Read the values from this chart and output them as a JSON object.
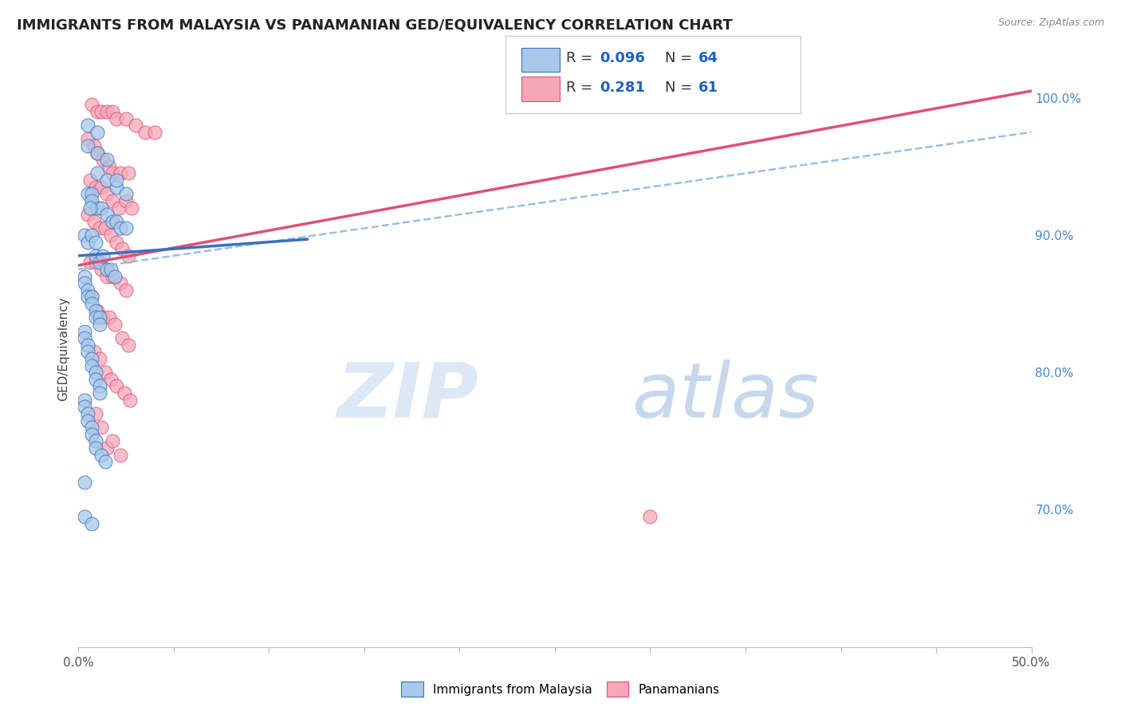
{
  "title": "IMMIGRANTS FROM MALAYSIA VS PANAMANIAN GED/EQUIVALENCY CORRELATION CHART",
  "source": "Source: ZipAtlas.com",
  "ylabel": "GED/Equivalency",
  "ytick_labels": [
    "100.0%",
    "90.0%",
    "80.0%",
    "70.0%"
  ],
  "ytick_values": [
    1.0,
    0.9,
    0.8,
    0.7
  ],
  "xlim": [
    0.0,
    0.5
  ],
  "ylim": [
    0.6,
    1.035
  ],
  "blue_R": 0.096,
  "blue_N": 64,
  "pink_R": 0.281,
  "pink_N": 61,
  "blue_color": "#a8c8e8",
  "pink_color": "#f5a8b8",
  "trendline_blue_solid_color": "#3a70c0",
  "trendline_blue_dashed_color": "#90b8e0",
  "trendline_pink_color": "#e05075",
  "legend_R_N_color": "#2060c0",
  "watermark_color": "#dce8f5",
  "background_color": "#ffffff",
  "grid_color": "#dddddd",
  "blue_scatter_x": [
    0.005,
    0.01,
    0.005,
    0.01,
    0.015,
    0.01,
    0.015,
    0.02,
    0.02,
    0.025,
    0.005,
    0.007,
    0.007,
    0.01,
    0.012,
    0.015,
    0.018,
    0.02,
    0.022,
    0.025,
    0.003,
    0.005,
    0.007,
    0.009,
    0.009,
    0.011,
    0.013,
    0.015,
    0.017,
    0.019,
    0.003,
    0.003,
    0.005,
    0.005,
    0.007,
    0.007,
    0.009,
    0.009,
    0.011,
    0.011,
    0.003,
    0.003,
    0.005,
    0.005,
    0.007,
    0.007,
    0.009,
    0.009,
    0.011,
    0.011,
    0.003,
    0.003,
    0.005,
    0.005,
    0.007,
    0.007,
    0.009,
    0.009,
    0.012,
    0.014,
    0.003,
    0.007,
    0.003,
    0.006
  ],
  "blue_scatter_y": [
    0.98,
    0.975,
    0.965,
    0.96,
    0.955,
    0.945,
    0.94,
    0.935,
    0.94,
    0.93,
    0.93,
    0.93,
    0.925,
    0.92,
    0.92,
    0.915,
    0.91,
    0.91,
    0.905,
    0.905,
    0.9,
    0.895,
    0.9,
    0.895,
    0.885,
    0.88,
    0.885,
    0.875,
    0.875,
    0.87,
    0.87,
    0.865,
    0.86,
    0.855,
    0.855,
    0.85,
    0.845,
    0.84,
    0.84,
    0.835,
    0.83,
    0.825,
    0.82,
    0.815,
    0.81,
    0.805,
    0.8,
    0.795,
    0.79,
    0.785,
    0.78,
    0.775,
    0.77,
    0.765,
    0.76,
    0.755,
    0.75,
    0.745,
    0.74,
    0.735,
    0.695,
    0.69,
    0.72,
    0.92
  ],
  "pink_scatter_x": [
    0.007,
    0.01,
    0.012,
    0.015,
    0.018,
    0.02,
    0.025,
    0.03,
    0.035,
    0.04,
    0.005,
    0.008,
    0.01,
    0.013,
    0.016,
    0.018,
    0.022,
    0.026,
    0.006,
    0.009,
    0.012,
    0.015,
    0.018,
    0.021,
    0.025,
    0.028,
    0.005,
    0.008,
    0.011,
    0.014,
    0.017,
    0.02,
    0.023,
    0.026,
    0.006,
    0.009,
    0.012,
    0.015,
    0.018,
    0.022,
    0.025,
    0.007,
    0.01,
    0.013,
    0.016,
    0.019,
    0.023,
    0.026,
    0.008,
    0.011,
    0.014,
    0.017,
    0.02,
    0.024,
    0.027,
    0.009,
    0.012,
    0.015,
    0.018,
    0.022,
    0.3
  ],
  "pink_scatter_y": [
    0.995,
    0.99,
    0.99,
    0.99,
    0.99,
    0.985,
    0.985,
    0.98,
    0.975,
    0.975,
    0.97,
    0.965,
    0.96,
    0.955,
    0.95,
    0.945,
    0.945,
    0.945,
    0.94,
    0.935,
    0.935,
    0.93,
    0.925,
    0.92,
    0.925,
    0.92,
    0.915,
    0.91,
    0.905,
    0.905,
    0.9,
    0.895,
    0.89,
    0.885,
    0.88,
    0.88,
    0.875,
    0.87,
    0.87,
    0.865,
    0.86,
    0.855,
    0.845,
    0.84,
    0.84,
    0.835,
    0.825,
    0.82,
    0.815,
    0.81,
    0.8,
    0.795,
    0.79,
    0.785,
    0.78,
    0.77,
    0.76,
    0.745,
    0.75,
    0.74,
    0.695
  ],
  "blue_trend_x": [
    0.0,
    0.5
  ],
  "blue_trend_y": [
    0.885,
    0.935
  ],
  "blue_dashed_trend_y": [
    0.875,
    0.975
  ],
  "pink_trend_x": [
    0.0,
    0.5
  ],
  "pink_trend_y": [
    0.878,
    1.005
  ]
}
